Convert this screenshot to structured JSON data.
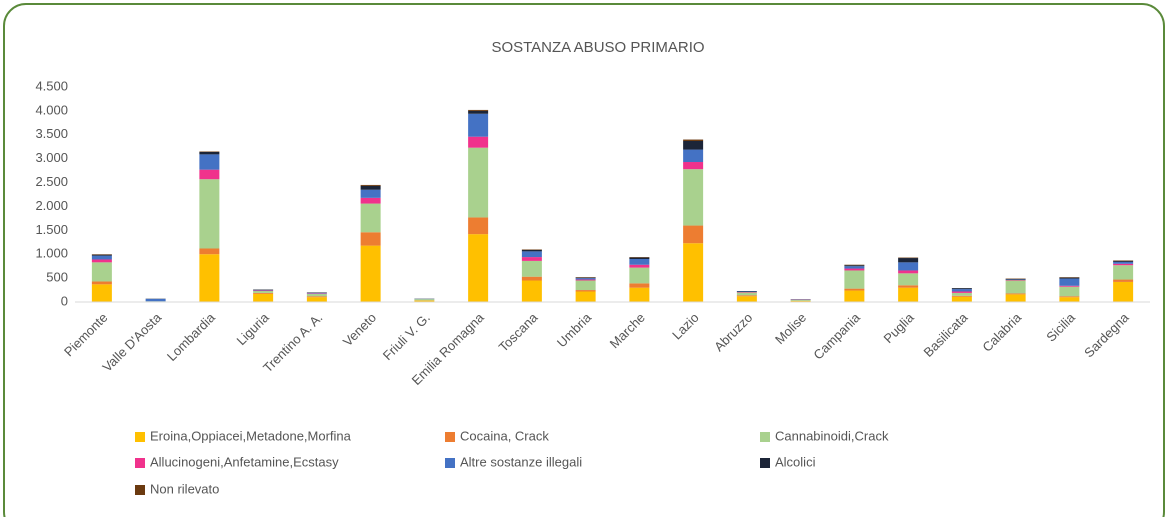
{
  "chart_data": {
    "type": "stacked_bar",
    "title": "SOSTANZA ABUSO PRIMARIO",
    "categories": [
      "Piemonte",
      "Valle D'Aosta",
      "Lombardia",
      "Liguria",
      "Trentino A. A.",
      "Veneto",
      "Friuli V. G.",
      "Emilia Romagna",
      "Toscana",
      "Umbria",
      "Marche",
      "Lazio",
      "Abruzzo",
      "Molise",
      "Campania",
      "Puglia",
      "Basilicata",
      "Calabria",
      "Sicilia",
      "Sardegna"
    ],
    "series": [
      {
        "name": "Eroina,Oppiacei,Metadone,Morfina",
        "color": "#ffc000",
        "values": [
          370,
          5,
          1000,
          170,
          100,
          1180,
          30,
          1420,
          450,
          220,
          300,
          1230,
          120,
          20,
          240,
          300,
          110,
          160,
          100,
          420
        ]
      },
      {
        "name": "Cocaina, Crack",
        "color": "#ed7d31",
        "values": [
          60,
          0,
          120,
          20,
          20,
          280,
          5,
          350,
          80,
          30,
          90,
          370,
          20,
          5,
          40,
          50,
          20,
          20,
          20,
          50
        ]
      },
      {
        "name": "Cannabinoidi,Crack",
        "color": "#a9d18e",
        "values": [
          400,
          10,
          1450,
          40,
          50,
          600,
          25,
          1460,
          330,
          200,
          330,
          1180,
          60,
          20,
          380,
          250,
          60,
          270,
          200,
          300
        ]
      },
      {
        "name": "Allucinogeni,Anfetamine,Ecstasy",
        "color": "#f0328c",
        "values": [
          60,
          0,
          200,
          10,
          10,
          120,
          0,
          230,
          80,
          20,
          60,
          150,
          10,
          5,
          40,
          60,
          30,
          10,
          20,
          30
        ]
      },
      {
        "name": "Altre sostanze illegali",
        "color": "#4472c4",
        "values": [
          80,
          50,
          320,
          10,
          10,
          170,
          5,
          480,
          120,
          30,
          120,
          260,
          10,
          5,
          50,
          170,
          50,
          10,
          150,
          40
        ]
      },
      {
        "name": "Alcolici",
        "color": "#1c2538",
        "values": [
          20,
          5,
          50,
          10,
          10,
          80,
          5,
          60,
          30,
          10,
          30,
          180,
          10,
          5,
          20,
          90,
          20,
          10,
          20,
          20
        ]
      },
      {
        "name": "Non rilevato",
        "color": "#6b3a10",
        "values": [
          10,
          0,
          10,
          0,
          0,
          20,
          0,
          20,
          10,
          10,
          10,
          30,
          0,
          0,
          10,
          10,
          0,
          10,
          10,
          10
        ]
      }
    ],
    "ylim": [
      0,
      4500
    ],
    "yticks": [
      0,
      {
        "value": 500,
        "label": "500"
      },
      {
        "value": 1000,
        "label": "1.000"
      },
      {
        "value": 1500,
        "label": "1.500"
      },
      {
        "value": 2000,
        "label": "2.000"
      },
      {
        "value": 2500,
        "label": "2.500"
      },
      {
        "value": 3000,
        "label": "3.000"
      },
      {
        "value": 3500,
        "label": "3.500"
      },
      {
        "value": 4000,
        "label": "4.000"
      },
      {
        "value": 4500,
        "label": "4.500"
      }
    ],
    "grid": false
  }
}
